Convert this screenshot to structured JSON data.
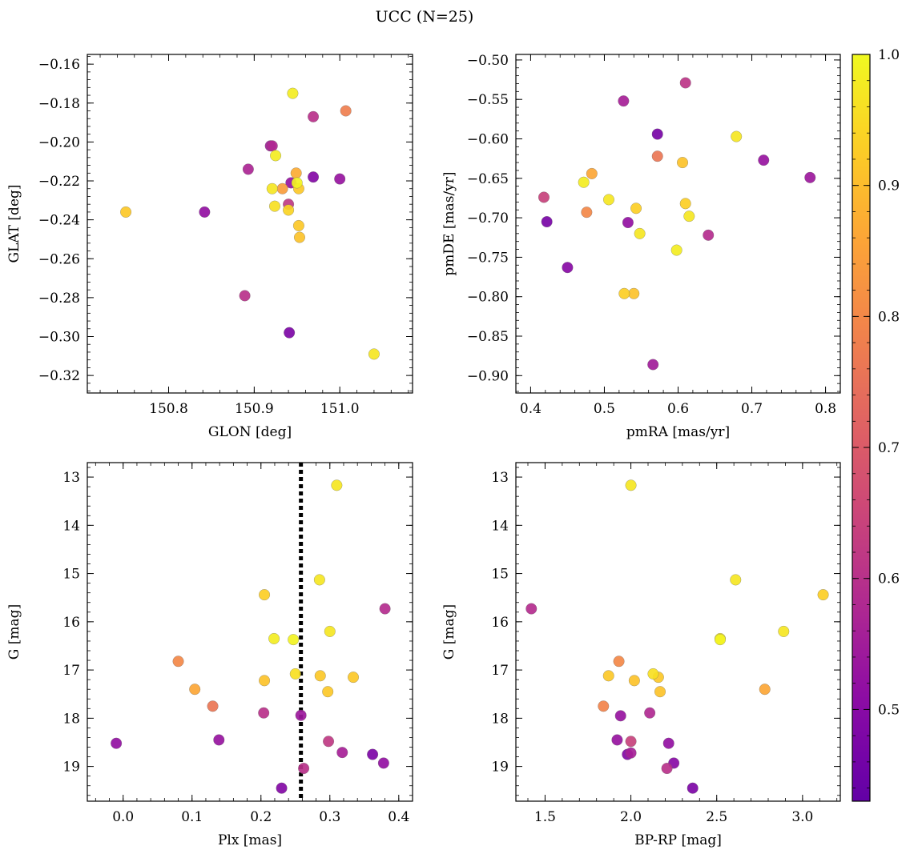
{
  "title": "UCC (N=25)",
  "colorbar": {
    "vmin": 0.43,
    "vmax": 1.0,
    "ticks": [
      0.5,
      0.6,
      0.7,
      0.8,
      0.9,
      1.0
    ],
    "tick_labels": [
      "0.5",
      "0.6",
      "0.7",
      "0.8",
      "0.9",
      "1.0"
    ],
    "colormap": "plasma"
  },
  "chart_data": [
    {
      "type": "scatter",
      "xlabel": "GLON [deg]",
      "ylabel": "GLAT [deg]",
      "xlim": [
        150.705,
        151.085
      ],
      "ylim": [
        -0.329,
        -0.155
      ],
      "y_inverted": false,
      "xticks": [
        150.8,
        150.9,
        151.0
      ],
      "xtick_labels": [
        "150.8",
        "150.9",
        "151.0"
      ],
      "yticks": [
        -0.32,
        -0.3,
        -0.28,
        -0.26,
        -0.24,
        -0.22,
        -0.2,
        -0.18,
        -0.16
      ],
      "ytick_labels": [
        "−0.32",
        "−0.30",
        "−0.28",
        "−0.26",
        "−0.24",
        "−0.22",
        "−0.20",
        "−0.18",
        "−0.16"
      ],
      "points": [
        {
          "x": 150.75,
          "y": -0.236,
          "c": 0.92
        },
        {
          "x": 150.842,
          "y": -0.236,
          "c": 0.52
        },
        {
          "x": 150.889,
          "y": -0.279,
          "c": 0.6
        },
        {
          "x": 150.893,
          "y": -0.214,
          "c": 0.57
        },
        {
          "x": 150.919,
          "y": -0.202,
          "c": 0.55
        },
        {
          "x": 150.921,
          "y": -0.202,
          "c": 0.58
        },
        {
          "x": 150.921,
          "y": -0.224,
          "c": 0.97
        },
        {
          "x": 150.924,
          "y": -0.233,
          "c": 0.96
        },
        {
          "x": 150.925,
          "y": -0.207,
          "c": 0.98
        },
        {
          "x": 150.933,
          "y": -0.224,
          "c": 0.84
        },
        {
          "x": 150.94,
          "y": -0.232,
          "c": 0.62
        },
        {
          "x": 150.94,
          "y": -0.235,
          "c": 0.94
        },
        {
          "x": 150.941,
          "y": -0.298,
          "c": 0.48
        },
        {
          "x": 150.943,
          "y": -0.221,
          "c": 0.53
        },
        {
          "x": 150.945,
          "y": -0.175,
          "c": 0.98
        },
        {
          "x": 150.949,
          "y": -0.216,
          "c": 0.87
        },
        {
          "x": 150.95,
          "y": -0.221,
          "c": 0.99
        },
        {
          "x": 150.952,
          "y": -0.224,
          "c": 0.92
        },
        {
          "x": 150.952,
          "y": -0.243,
          "c": 0.92
        },
        {
          "x": 150.953,
          "y": -0.249,
          "c": 0.91
        },
        {
          "x": 150.969,
          "y": -0.218,
          "c": 0.49
        },
        {
          "x": 150.969,
          "y": -0.187,
          "c": 0.6
        },
        {
          "x": 151.0,
          "y": -0.219,
          "c": 0.53
        },
        {
          "x": 151.007,
          "y": -0.184,
          "c": 0.78
        },
        {
          "x": 151.04,
          "y": -0.309,
          "c": 0.97
        }
      ]
    },
    {
      "type": "scatter",
      "xlabel": "pmRA [mas/yr]",
      "ylabel": "pmDE [mas/yr]",
      "xlim": [
        0.38,
        0.82
      ],
      "ylim": [
        -0.922,
        -0.493
      ],
      "y_inverted": false,
      "xticks": [
        0.4,
        0.5,
        0.6,
        0.7,
        0.8
      ],
      "xtick_labels": [
        "0.4",
        "0.5",
        "0.6",
        "0.7",
        "0.8"
      ],
      "yticks": [
        -0.9,
        -0.85,
        -0.8,
        -0.75,
        -0.7,
        -0.65,
        -0.6,
        -0.55,
        -0.5
      ],
      "ytick_labels": [
        "−0.90",
        "−0.85",
        "−0.80",
        "−0.75",
        "−0.70",
        "−0.65",
        "−0.60",
        "−0.55",
        "−0.50"
      ],
      "points": [
        {
          "x": 0.418,
          "y": -0.674,
          "c": 0.64
        },
        {
          "x": 0.422,
          "y": -0.705,
          "c": 0.47
        },
        {
          "x": 0.45,
          "y": -0.763,
          "c": 0.5
        },
        {
          "x": 0.472,
          "y": -0.655,
          "c": 0.98
        },
        {
          "x": 0.476,
          "y": -0.693,
          "c": 0.8
        },
        {
          "x": 0.483,
          "y": -0.644,
          "c": 0.86
        },
        {
          "x": 0.506,
          "y": -0.677,
          "c": 0.97
        },
        {
          "x": 0.526,
          "y": -0.552,
          "c": 0.56
        },
        {
          "x": 0.527,
          "y": -0.796,
          "c": 0.93
        },
        {
          "x": 0.532,
          "y": -0.706,
          "c": 0.52
        },
        {
          "x": 0.54,
          "y": -0.796,
          "c": 0.91
        },
        {
          "x": 0.543,
          "y": -0.688,
          "c": 0.93
        },
        {
          "x": 0.548,
          "y": -0.72,
          "c": 0.97
        },
        {
          "x": 0.566,
          "y": -0.886,
          "c": 0.55
        },
        {
          "x": 0.572,
          "y": -0.594,
          "c": 0.47
        },
        {
          "x": 0.572,
          "y": -0.622,
          "c": 0.76
        },
        {
          "x": 0.598,
          "y": -0.741,
          "c": 0.98
        },
        {
          "x": 0.606,
          "y": -0.63,
          "c": 0.91
        },
        {
          "x": 0.61,
          "y": -0.529,
          "c": 0.61
        },
        {
          "x": 0.61,
          "y": -0.682,
          "c": 0.93
        },
        {
          "x": 0.615,
          "y": -0.698,
          "c": 0.97
        },
        {
          "x": 0.641,
          "y": -0.722,
          "c": 0.59
        },
        {
          "x": 0.679,
          "y": -0.597,
          "c": 0.97
        },
        {
          "x": 0.716,
          "y": -0.627,
          "c": 0.53
        },
        {
          "x": 0.779,
          "y": -0.649,
          "c": 0.54
        }
      ]
    },
    {
      "type": "scatter",
      "xlabel": "Plx [mas]",
      "ylabel": "G [mag]",
      "xlim": [
        -0.052,
        0.42
      ],
      "ylim": [
        12.7,
        19.72
      ],
      "y_inverted": true,
      "xticks": [
        0.0,
        0.1,
        0.2,
        0.3,
        0.4
      ],
      "xtick_labels": [
        "0.0",
        "0.1",
        "0.2",
        "0.3",
        "0.4"
      ],
      "yticks": [
        13,
        14,
        15,
        16,
        17,
        18,
        19
      ],
      "ytick_labels": [
        "13",
        "14",
        "15",
        "16",
        "17",
        "18",
        "19"
      ],
      "vline": 0.258,
      "points": [
        {
          "x": -0.01,
          "y": 18.52,
          "c": 0.52
        },
        {
          "x": 0.08,
          "y": 16.82,
          "c": 0.8
        },
        {
          "x": 0.104,
          "y": 17.4,
          "c": 0.86
        },
        {
          "x": 0.13,
          "y": 17.75,
          "c": 0.76
        },
        {
          "x": 0.139,
          "y": 18.45,
          "c": 0.53
        },
        {
          "x": 0.204,
          "y": 17.89,
          "c": 0.6
        },
        {
          "x": 0.205,
          "y": 15.44,
          "c": 0.93
        },
        {
          "x": 0.205,
          "y": 17.22,
          "c": 0.91
        },
        {
          "x": 0.219,
          "y": 16.35,
          "c": 0.98
        },
        {
          "x": 0.23,
          "y": 19.45,
          "c": 0.49
        },
        {
          "x": 0.247,
          "y": 16.37,
          "c": 0.99
        },
        {
          "x": 0.25,
          "y": 17.08,
          "c": 0.96
        },
        {
          "x": 0.258,
          "y": 17.94,
          "c": 0.54
        },
        {
          "x": 0.262,
          "y": 19.04,
          "c": 0.6
        },
        {
          "x": 0.285,
          "y": 15.13,
          "c": 0.97
        },
        {
          "x": 0.286,
          "y": 17.12,
          "c": 0.92
        },
        {
          "x": 0.297,
          "y": 17.45,
          "c": 0.92
        },
        {
          "x": 0.298,
          "y": 18.48,
          "c": 0.62
        },
        {
          "x": 0.3,
          "y": 16.2,
          "c": 0.97
        },
        {
          "x": 0.31,
          "y": 13.17,
          "c": 0.97
        },
        {
          "x": 0.318,
          "y": 18.71,
          "c": 0.56
        },
        {
          "x": 0.334,
          "y": 17.15,
          "c": 0.92
        },
        {
          "x": 0.362,
          "y": 18.75,
          "c": 0.48
        },
        {
          "x": 0.378,
          "y": 18.93,
          "c": 0.52
        },
        {
          "x": 0.38,
          "y": 15.73,
          "c": 0.59
        }
      ]
    },
    {
      "type": "scatter",
      "xlabel": "BP-RP [mag]",
      "ylabel": "G [mag]",
      "xlim": [
        1.33,
        3.22
      ],
      "ylim": [
        12.7,
        19.72
      ],
      "y_inverted": true,
      "xticks": [
        1.5,
        2.0,
        2.5,
        3.0
      ],
      "xtick_labels": [
        "1.5",
        "2.0",
        "2.5",
        "3.0"
      ],
      "yticks": [
        13,
        14,
        15,
        16,
        17,
        18,
        19
      ],
      "ytick_labels": [
        "13",
        "14",
        "15",
        "16",
        "17",
        "18",
        "19"
      ],
      "points": [
        {
          "x": 1.42,
          "y": 15.73,
          "c": 0.59
        },
        {
          "x": 1.84,
          "y": 17.75,
          "c": 0.79
        },
        {
          "x": 1.87,
          "y": 17.12,
          "c": 0.92
        },
        {
          "x": 1.92,
          "y": 18.45,
          "c": 0.53
        },
        {
          "x": 1.93,
          "y": 16.82,
          "c": 0.8
        },
        {
          "x": 1.94,
          "y": 17.95,
          "c": 0.53
        },
        {
          "x": 1.98,
          "y": 18.75,
          "c": 0.49
        },
        {
          "x": 2.0,
          "y": 18.48,
          "c": 0.64
        },
        {
          "x": 2.0,
          "y": 18.72,
          "c": 0.56
        },
        {
          "x": 2.0,
          "y": 13.17,
          "c": 0.97
        },
        {
          "x": 2.02,
          "y": 17.22,
          "c": 0.91
        },
        {
          "x": 2.11,
          "y": 17.89,
          "c": 0.58
        },
        {
          "x": 2.13,
          "y": 17.08,
          "c": 0.96
        },
        {
          "x": 2.16,
          "y": 17.15,
          "c": 0.92
        },
        {
          "x": 2.17,
          "y": 17.45,
          "c": 0.91
        },
        {
          "x": 2.21,
          "y": 19.04,
          "c": 0.6
        },
        {
          "x": 2.22,
          "y": 18.52,
          "c": 0.52
        },
        {
          "x": 2.25,
          "y": 18.93,
          "c": 0.5
        },
        {
          "x": 2.36,
          "y": 19.45,
          "c": 0.48
        },
        {
          "x": 2.52,
          "y": 16.35,
          "c": 0.97
        },
        {
          "x": 2.52,
          "y": 16.37,
          "c": 0.99
        },
        {
          "x": 2.61,
          "y": 15.13,
          "c": 0.97
        },
        {
          "x": 2.78,
          "y": 17.4,
          "c": 0.86
        },
        {
          "x": 2.89,
          "y": 16.2,
          "c": 0.97
        },
        {
          "x": 3.12,
          "y": 15.44,
          "c": 0.93
        }
      ]
    }
  ]
}
